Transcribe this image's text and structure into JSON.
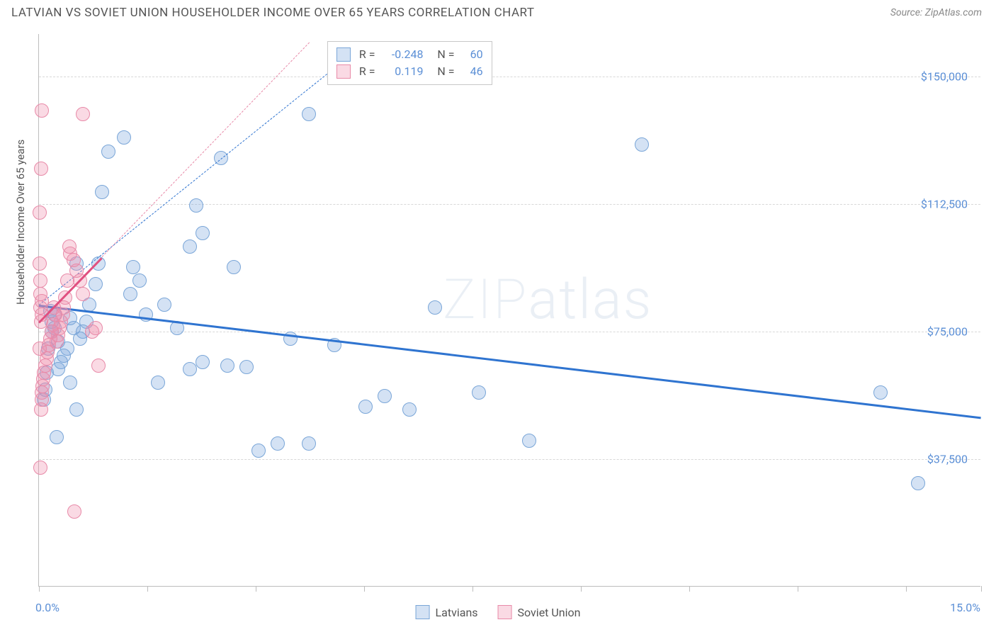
{
  "title": "LATVIAN VS SOVIET UNION HOUSEHOLDER INCOME OVER 65 YEARS CORRELATION CHART",
  "source": "Source: ZipAtlas.com",
  "y_axis_label": "Householder Income Over 65 years",
  "watermark": "ZIPatlas",
  "chart": {
    "type": "scatter",
    "background_color": "#ffffff",
    "grid_color": "#d8d8d8",
    "border_color": "#bdbdbd",
    "xlim": [
      0,
      15
    ],
    "ylim": [
      0,
      162500
    ],
    "x_ticks_pct": [
      0,
      11.5,
      23,
      34.5,
      46,
      57.5,
      69,
      80.5,
      92,
      100
    ],
    "y_gridlines": [
      37500,
      75000,
      112500,
      150000
    ],
    "y_tick_labels": [
      "$37,500",
      "$75,000",
      "$112,500",
      "$150,000"
    ],
    "x_min_label": "0.0%",
    "x_max_label": "15.0%",
    "tick_label_color": "#5b8fd6",
    "tick_label_fontsize": 16,
    "axis_label_fontsize": 15,
    "axis_label_color": "#555555",
    "point_radius": 10,
    "series": [
      {
        "name": "Latvians",
        "fill": "rgba(120,165,220,0.32)",
        "stroke": "#7aa6d8",
        "R": "-0.248",
        "N": "60",
        "trend": {
          "x1": 0,
          "y1": 83000,
          "x2": 15,
          "y2": 50000,
          "color": "#2f74d0",
          "width": 3,
          "dash": "solid"
        },
        "ext": {
          "x1": 0,
          "y1": 83000,
          "x2": 5.2,
          "y2": 160000,
          "color": "#2f74d0",
          "width": 1,
          "dash": "dashed"
        },
        "points": [
          [
            9.6,
            130000
          ],
          [
            14.0,
            30500
          ],
          [
            13.4,
            57000
          ],
          [
            7.8,
            43000
          ],
          [
            5.2,
            53000
          ],
          [
            5.5,
            56000
          ],
          [
            5.9,
            52000
          ],
          [
            7.0,
            57000
          ],
          [
            4.7,
            71000
          ],
          [
            4.3,
            42000
          ],
          [
            3.5,
            40000
          ],
          [
            3.8,
            42000
          ],
          [
            4.0,
            73000
          ],
          [
            3.3,
            64500
          ],
          [
            3.0,
            65000
          ],
          [
            2.4,
            64000
          ],
          [
            2.6,
            66000
          ],
          [
            2.2,
            76000
          ],
          [
            2.4,
            100000
          ],
          [
            2.6,
            104000
          ],
          [
            2.9,
            126000
          ],
          [
            3.1,
            94000
          ],
          [
            2.0,
            83000
          ],
          [
            1.9,
            60000
          ],
          [
            1.7,
            80000
          ],
          [
            1.6,
            90000
          ],
          [
            1.5,
            94000
          ],
          [
            1.45,
            86000
          ],
          [
            1.35,
            132000
          ],
          [
            1.0,
            116000
          ],
          [
            1.1,
            128000
          ],
          [
            0.95,
            95000
          ],
          [
            0.9,
            89000
          ],
          [
            0.8,
            83000
          ],
          [
            0.75,
            78000
          ],
          [
            0.7,
            75000
          ],
          [
            0.65,
            73000
          ],
          [
            0.6,
            95000
          ],
          [
            0.55,
            76000
          ],
          [
            0.5,
            79000
          ],
          [
            0.45,
            70000
          ],
          [
            0.4,
            68000
          ],
          [
            0.35,
            66000
          ],
          [
            0.3,
            64000
          ],
          [
            0.3,
            72000
          ],
          [
            0.25,
            76000
          ],
          [
            0.25,
            80000
          ],
          [
            0.2,
            75000
          ],
          [
            0.2,
            78000
          ],
          [
            0.18,
            81000
          ],
          [
            0.15,
            70000
          ],
          [
            0.12,
            63000
          ],
          [
            0.1,
            58000
          ],
          [
            0.08,
            55000
          ],
          [
            0.28,
            44000
          ],
          [
            6.3,
            82000
          ],
          [
            4.3,
            139000
          ],
          [
            2.5,
            112000
          ],
          [
            0.5,
            60000
          ],
          [
            0.6,
            52000
          ]
        ]
      },
      {
        "name": "Soviet Union",
        "fill": "rgba(240,140,170,0.32)",
        "stroke": "#e88aa8",
        "R": "0.119",
        "N": "46",
        "trend": {
          "x1": 0,
          "y1": 78000,
          "x2": 1.0,
          "y2": 97000,
          "color": "#e05080",
          "width": 3,
          "dash": "solid"
        },
        "ext": {
          "x1": 1.0,
          "y1": 97000,
          "x2": 4.3,
          "y2": 160000,
          "color": "#e88aa8",
          "width": 1,
          "dash": "dashed"
        },
        "points": [
          [
            0.7,
            139000
          ],
          [
            0.05,
            140000
          ],
          [
            0.03,
            123000
          ],
          [
            0.56,
            22000
          ],
          [
            0.02,
            35000
          ],
          [
            0.95,
            65000
          ],
          [
            0.85,
            75000
          ],
          [
            0.9,
            76000
          ],
          [
            0.7,
            86000
          ],
          [
            0.65,
            90000
          ],
          [
            0.6,
            93000
          ],
          [
            0.55,
            96000
          ],
          [
            0.5,
            98000
          ],
          [
            0.48,
            100000
          ],
          [
            0.45,
            90000
          ],
          [
            0.42,
            85000
          ],
          [
            0.4,
            82000
          ],
          [
            0.38,
            80000
          ],
          [
            0.35,
            78000
          ],
          [
            0.33,
            76000
          ],
          [
            0.3,
            74000
          ],
          [
            0.28,
            72000
          ],
          [
            0.26,
            80000
          ],
          [
            0.24,
            82000
          ],
          [
            0.22,
            77000
          ],
          [
            0.2,
            75000
          ],
          [
            0.18,
            73000
          ],
          [
            0.16,
            71000
          ],
          [
            0.14,
            69000
          ],
          [
            0.12,
            67000
          ],
          [
            0.1,
            65000
          ],
          [
            0.08,
            63000
          ],
          [
            0.07,
            61000
          ],
          [
            0.06,
            59000
          ],
          [
            0.05,
            57000
          ],
          [
            0.04,
            55000
          ],
          [
            0.035,
            52000
          ],
          [
            0.03,
            78000
          ],
          [
            0.025,
            82000
          ],
          [
            0.02,
            86000
          ],
          [
            0.018,
            90000
          ],
          [
            0.015,
            95000
          ],
          [
            0.012,
            70000
          ],
          [
            0.01,
            110000
          ],
          [
            0.04,
            80000
          ],
          [
            0.05,
            84000
          ]
        ]
      }
    ]
  },
  "legend_bottom": [
    "Latvians",
    "Soviet Union"
  ]
}
